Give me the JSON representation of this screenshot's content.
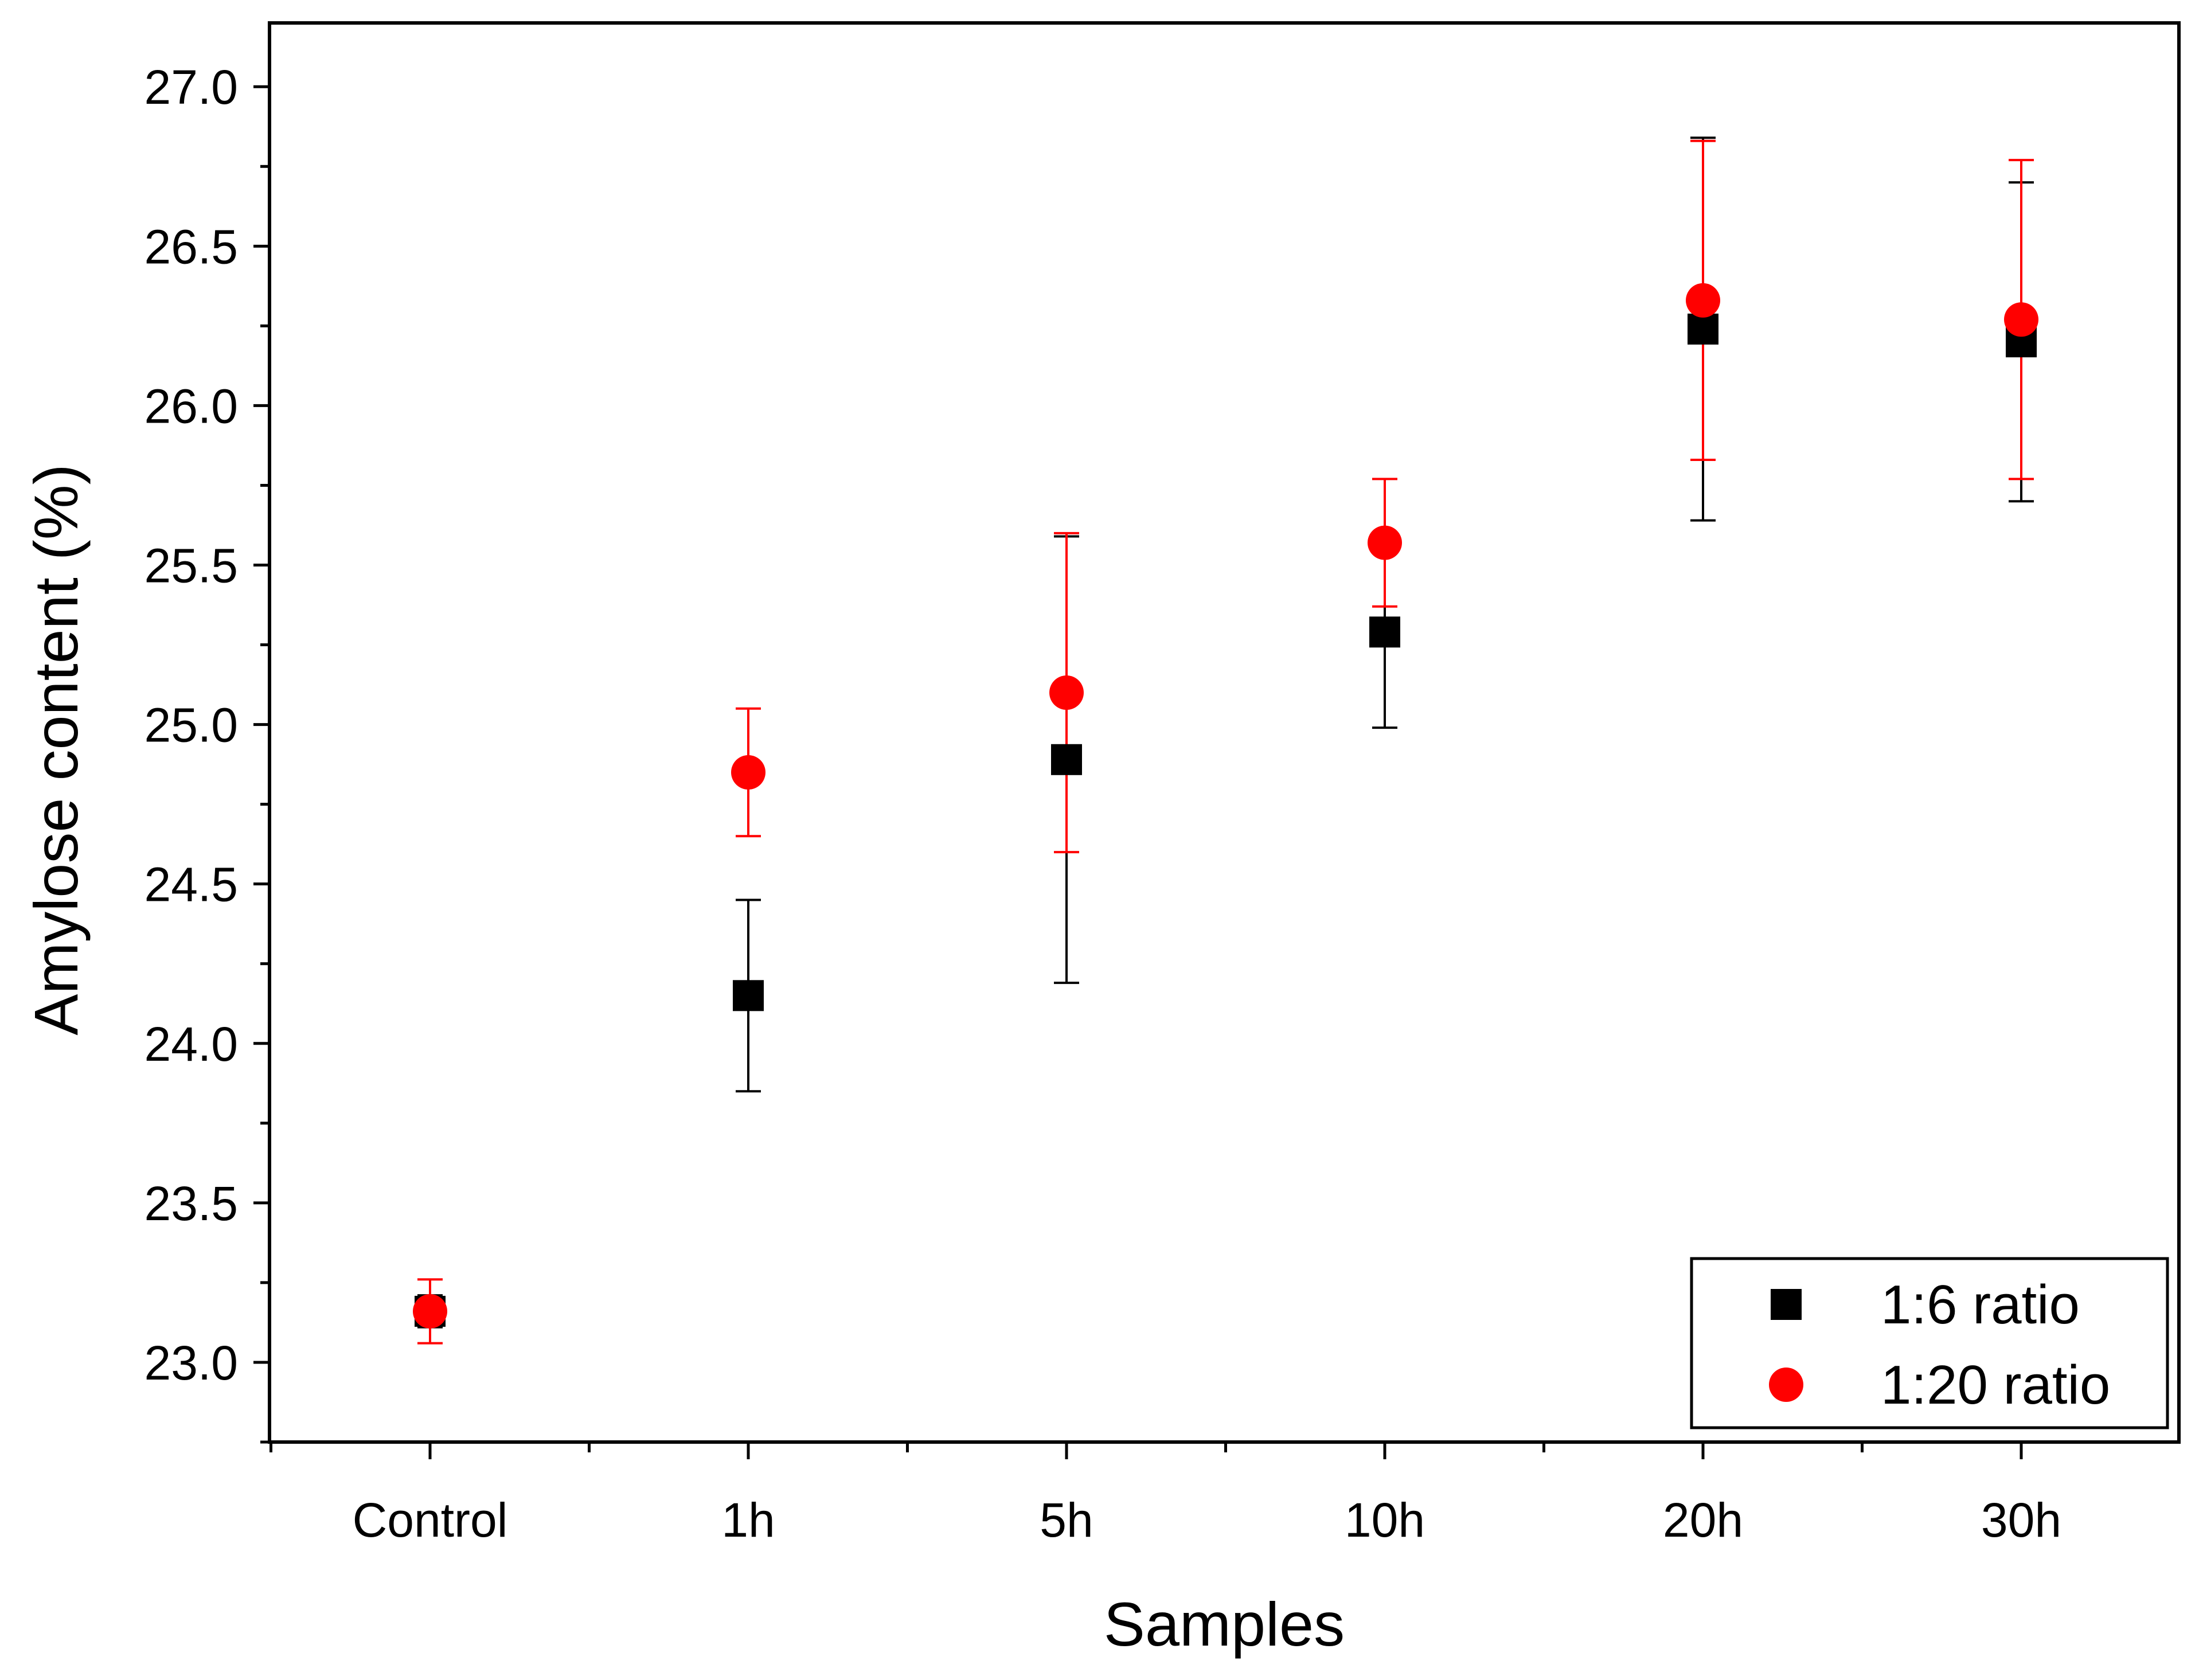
{
  "chart_data": {
    "type": "scatter",
    "xlabel": "Samples",
    "ylabel": "Amylose content (%)",
    "categories": [
      "Control",
      "1h",
      "5h",
      "10h",
      "20h",
      "30h"
    ],
    "y_ticks": [
      "23.0",
      "23.5",
      "24.0",
      "24.5",
      "25.0",
      "25.5",
      "26.0",
      "26.5",
      "27.0"
    ],
    "ylim": [
      22.75,
      27.2
    ],
    "grid": false,
    "legend_position": "bottom-right",
    "series": [
      {
        "name": "1:6 ratio",
        "marker": "square",
        "color": "#000000",
        "values": [
          23.16,
          24.15,
          24.89,
          25.29,
          26.24,
          26.2
        ],
        "errors": [
          0.05,
          0.3,
          0.7,
          0.3,
          0.6,
          0.5
        ]
      },
      {
        "name": "1:20 ratio",
        "marker": "circle",
        "color": "#ff0000",
        "values": [
          23.16,
          24.85,
          25.1,
          25.57,
          26.33,
          26.27
        ],
        "errors": [
          0.1,
          0.2,
          0.5,
          0.2,
          0.5,
          0.5
        ]
      }
    ]
  }
}
